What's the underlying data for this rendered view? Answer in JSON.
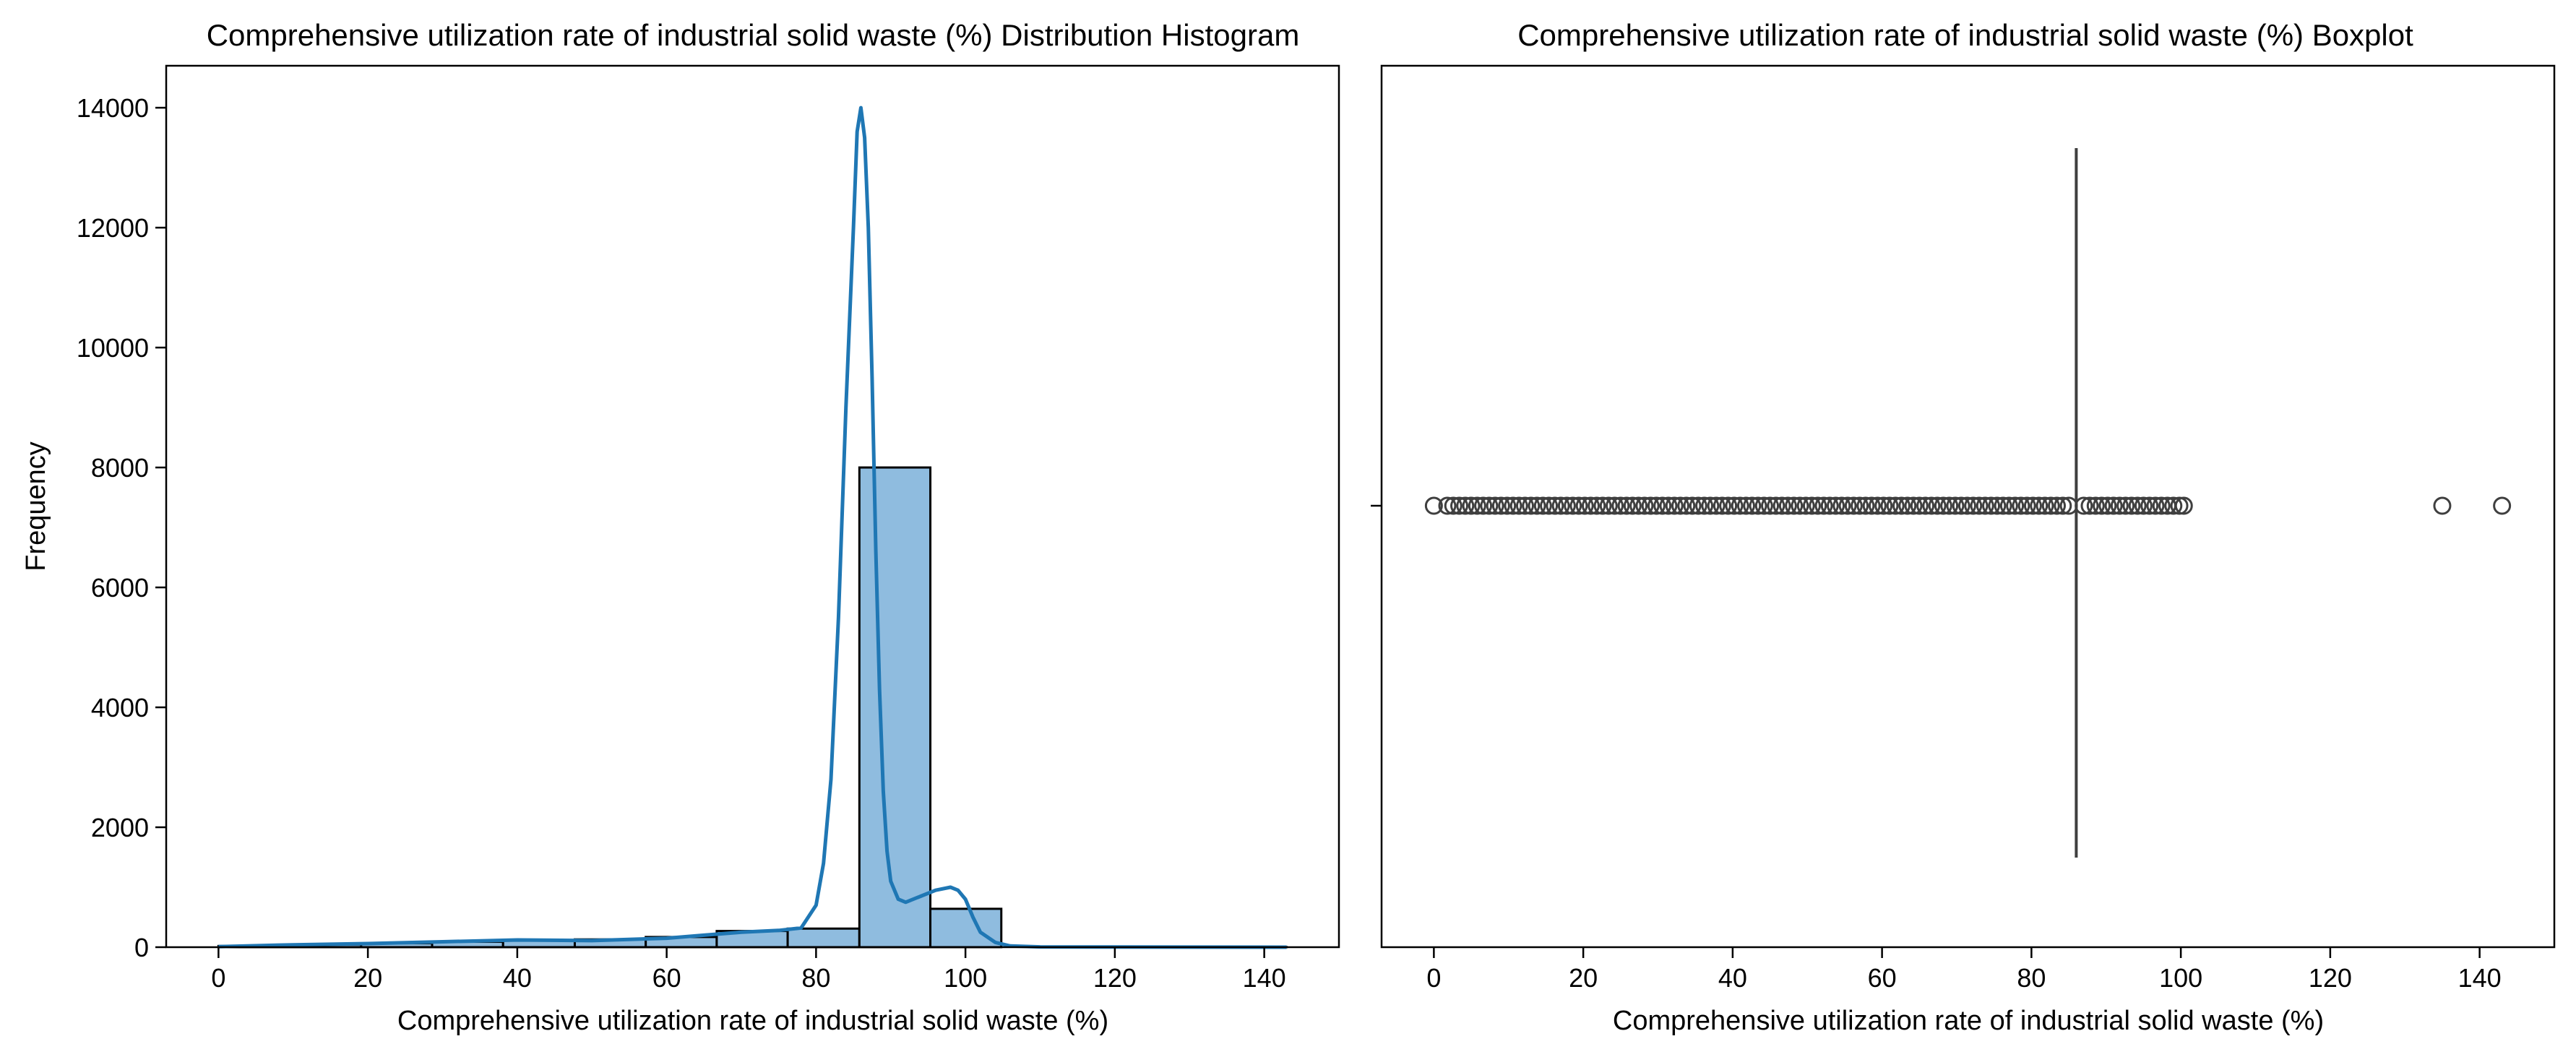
{
  "chart_data": [
    {
      "type": "bar",
      "subtype": "histogram-with-kde",
      "title": "Comprehensive utilization rate of industrial solid waste (%) Distribution Histogram",
      "xlabel": "Comprehensive utilization rate of industrial solid waste (%)",
      "ylabel": "Frequency",
      "xlim": [
        -7,
        150
      ],
      "ylim": [
        0,
        14700
      ],
      "xticks": [
        0,
        20,
        40,
        60,
        80,
        100,
        120,
        140
      ],
      "yticks": [
        0,
        2000,
        4000,
        6000,
        8000,
        10000,
        12000,
        14000
      ],
      "bar_color": "#8fbcdf",
      "bar_edge_color": "#000000",
      "kde_color": "#1f77b4",
      "bins": [
        {
          "x0": 0,
          "x1": 9.5,
          "value": 20
        },
        {
          "x0": 9.5,
          "x1": 19.1,
          "value": 45
        },
        {
          "x0": 19.1,
          "x1": 28.6,
          "value": 65
        },
        {
          "x0": 28.6,
          "x1": 38.1,
          "value": 90
        },
        {
          "x0": 38.1,
          "x1": 47.7,
          "value": 120
        },
        {
          "x0": 47.7,
          "x1": 57.2,
          "value": 130
        },
        {
          "x0": 57.2,
          "x1": 66.7,
          "value": 170
        },
        {
          "x0": 66.7,
          "x1": 76.2,
          "value": 270
        },
        {
          "x0": 76.2,
          "x1": 85.8,
          "value": 310
        },
        {
          "x0": 85.8,
          "x1": 95.3,
          "value": 8000
        },
        {
          "x0": 95.3,
          "x1": 104.8,
          "value": 640
        },
        {
          "x0": 104.8,
          "x1": 114.4,
          "value": 0
        },
        {
          "x0": 114.4,
          "x1": 123.9,
          "value": 0
        },
        {
          "x0": 123.9,
          "x1": 133.4,
          "value": 0
        },
        {
          "x0": 133.4,
          "x1": 143.0,
          "value": 2
        }
      ],
      "kde": {
        "x": [
          0,
          10,
          20,
          30,
          40,
          50,
          60,
          65,
          70,
          75,
          78,
          80,
          81,
          82,
          83,
          84,
          85,
          85.5,
          86,
          86.5,
          87,
          87.5,
          88,
          88.5,
          89,
          89.5,
          90,
          91,
          92,
          94,
          96,
          98,
          99,
          100,
          101,
          102,
          104,
          106,
          110,
          120,
          130,
          143
        ],
        "y": [
          10,
          40,
          60,
          90,
          120,
          110,
          150,
          200,
          250,
          280,
          320,
          700,
          1400,
          2800,
          5500,
          9000,
          12000,
          13600,
          14000,
          13500,
          12000,
          9500,
          6600,
          4300,
          2600,
          1600,
          1100,
          800,
          750,
          850,
          950,
          1000,
          950,
          800,
          500,
          250,
          80,
          20,
          5,
          2,
          1,
          0
        ]
      }
    },
    {
      "type": "boxplot",
      "title": "Comprehensive utilization rate of industrial solid waste (%) Boxplot",
      "xlabel": "Comprehensive utilization rate of industrial solid waste (%)",
      "xlim": [
        -7,
        150
      ],
      "xticks": [
        0,
        20,
        40,
        60,
        80,
        100,
        120,
        140
      ],
      "median": 86,
      "q1": 86,
      "q3": 86,
      "line_color": "#3f3f3f",
      "outliers": [
        0,
        1.8,
        2.6,
        3.4,
        4.2,
        5,
        5.8,
        6.6,
        7.4,
        8.2,
        9,
        9.8,
        10.6,
        11.4,
        12.2,
        13,
        13.8,
        14.6,
        15.4,
        16.2,
        17,
        17.8,
        18.6,
        19.4,
        20.2,
        21,
        21.8,
        22.6,
        23.4,
        24.2,
        25,
        25.8,
        26.6,
        27.4,
        28.2,
        29,
        29.8,
        30.6,
        31.4,
        32.2,
        33,
        33.8,
        34.6,
        35.4,
        36.2,
        37,
        37.8,
        38.6,
        39.4,
        40.2,
        41,
        41.8,
        42.6,
        43.4,
        44.2,
        45,
        45.8,
        46.6,
        47.4,
        48.2,
        49,
        49.8,
        50.6,
        51.4,
        52.2,
        53,
        53.8,
        54.6,
        55.4,
        56.2,
        57,
        57.8,
        58.6,
        59.4,
        60.2,
        61,
        61.8,
        62.6,
        63.4,
        64.2,
        65,
        65.8,
        66.6,
        67.4,
        68.2,
        69,
        69.8,
        70.6,
        71.4,
        72.2,
        73,
        73.8,
        74.6,
        75.4,
        76.2,
        77,
        77.8,
        78.6,
        79.4,
        80.2,
        81,
        81.8,
        82.6,
        83.4,
        84.2,
        85,
        87,
        87.8,
        88.6,
        89.4,
        90.2,
        91,
        91.8,
        92.6,
        93.4,
        94.2,
        95,
        95.8,
        96.6,
        97.4,
        98.2,
        99,
        99.8,
        100.4,
        135,
        143
      ]
    }
  ]
}
